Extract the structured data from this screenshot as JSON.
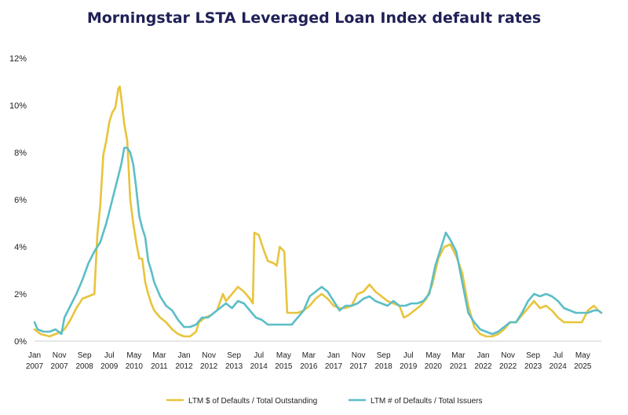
{
  "chart_data": {
    "type": "line",
    "title": "Morningstar LSTA Leveraged Loan Index default rates",
    "xlabel": "",
    "ylabel": "",
    "ylim": [
      0,
      12
    ],
    "y_ticks": [
      "0%",
      "2%",
      "4%",
      "6%",
      "8%",
      "10%",
      "12%"
    ],
    "y_tick_values": [
      0,
      2,
      4,
      6,
      8,
      10,
      12
    ],
    "x_range": [
      2007.0,
      2025.95
    ],
    "x_ticks": [
      {
        "month": "Jan",
        "year": "2007",
        "x": 2007.0
      },
      {
        "month": "Nov",
        "year": "2007",
        "x": 2007.83
      },
      {
        "month": "Sep",
        "year": "2008",
        "x": 2008.67
      },
      {
        "month": "Jul",
        "year": "2009",
        "x": 2009.5
      },
      {
        "month": "May",
        "year": "2010",
        "x": 2010.33
      },
      {
        "month": "Mar",
        "year": "2011",
        "x": 2011.17
      },
      {
        "month": "Jan",
        "year": "2012",
        "x": 2012.0
      },
      {
        "month": "Nov",
        "year": "2012",
        "x": 2012.83
      },
      {
        "month": "Sep",
        "year": "2013",
        "x": 2013.67
      },
      {
        "month": "Jul",
        "year": "2014",
        "x": 2014.5
      },
      {
        "month": "May",
        "year": "2015",
        "x": 2015.33
      },
      {
        "month": "Mar",
        "year": "2016",
        "x": 2016.17
      },
      {
        "month": "Jan",
        "year": "2017",
        "x": 2017.0
      },
      {
        "month": "Nov",
        "year": "2017",
        "x": 2017.83
      },
      {
        "month": "Sep",
        "year": "2018",
        "x": 2018.67
      },
      {
        "month": "Jul",
        "year": "2019",
        "x": 2019.5
      },
      {
        "month": "May",
        "year": "2020",
        "x": 2020.33
      },
      {
        "month": "Mar",
        "year": "2021",
        "x": 2021.17
      },
      {
        "month": "Jan",
        "year": "2022",
        "x": 2022.0
      },
      {
        "month": "Nov",
        "year": "2022",
        "x": 2022.83
      },
      {
        "month": "Sep",
        "year": "2023",
        "x": 2023.67
      },
      {
        "month": "Jul",
        "year": "2024",
        "x": 2024.5
      },
      {
        "month": "May",
        "year": "2025",
        "x": 2025.33
      }
    ],
    "legend_position": "bottom",
    "series": [
      {
        "name": "LTM $ of Defaults / Total Outstanding",
        "color": "#e8c43c",
        "points": [
          [
            2007.0,
            0.5
          ],
          [
            2007.2,
            0.3
          ],
          [
            2007.5,
            0.2
          ],
          [
            2007.7,
            0.3
          ],
          [
            2007.9,
            0.4
          ],
          [
            2008.0,
            0.5
          ],
          [
            2008.2,
            0.9
          ],
          [
            2008.4,
            1.4
          ],
          [
            2008.6,
            1.8
          ],
          [
            2008.8,
            1.9
          ],
          [
            2009.0,
            2.0
          ],
          [
            2009.1,
            4.5
          ],
          [
            2009.2,
            5.8
          ],
          [
            2009.3,
            7.9
          ],
          [
            2009.4,
            8.5
          ],
          [
            2009.5,
            9.3
          ],
          [
            2009.6,
            9.7
          ],
          [
            2009.7,
            9.9
          ],
          [
            2009.8,
            10.7
          ],
          [
            2009.85,
            10.8
          ],
          [
            2009.9,
            10.3
          ],
          [
            2010.0,
            9.2
          ],
          [
            2010.1,
            8.5
          ],
          [
            2010.2,
            6.0
          ],
          [
            2010.3,
            5.0
          ],
          [
            2010.4,
            4.2
          ],
          [
            2010.5,
            3.5
          ],
          [
            2010.6,
            3.5
          ],
          [
            2010.7,
            2.5
          ],
          [
            2010.8,
            2.0
          ],
          [
            2010.9,
            1.6
          ],
          [
            2011.0,
            1.3
          ],
          [
            2011.2,
            1.0
          ],
          [
            2011.4,
            0.8
          ],
          [
            2011.6,
            0.5
          ],
          [
            2011.8,
            0.3
          ],
          [
            2012.0,
            0.2
          ],
          [
            2012.2,
            0.2
          ],
          [
            2012.4,
            0.4
          ],
          [
            2012.5,
            0.8
          ],
          [
            2012.7,
            1.0
          ],
          [
            2012.9,
            1.1
          ],
          [
            2013.1,
            1.3
          ],
          [
            2013.3,
            2.0
          ],
          [
            2013.4,
            1.7
          ],
          [
            2013.6,
            2.0
          ],
          [
            2013.8,
            2.3
          ],
          [
            2014.0,
            2.1
          ],
          [
            2014.2,
            1.8
          ],
          [
            2014.3,
            1.6
          ],
          [
            2014.35,
            4.6
          ],
          [
            2014.5,
            4.5
          ],
          [
            2014.65,
            3.9
          ],
          [
            2014.8,
            3.4
          ],
          [
            2015.0,
            3.3
          ],
          [
            2015.1,
            3.2
          ],
          [
            2015.2,
            4.0
          ],
          [
            2015.35,
            3.8
          ],
          [
            2015.45,
            1.2
          ],
          [
            2015.6,
            1.2
          ],
          [
            2015.8,
            1.2
          ],
          [
            2016.0,
            1.3
          ],
          [
            2016.2,
            1.5
          ],
          [
            2016.4,
            1.8
          ],
          [
            2016.6,
            2.0
          ],
          [
            2016.8,
            1.8
          ],
          [
            2017.0,
            1.5
          ],
          [
            2017.2,
            1.4
          ],
          [
            2017.4,
            1.4
          ],
          [
            2017.6,
            1.5
          ],
          [
            2017.8,
            2.0
          ],
          [
            2018.0,
            2.1
          ],
          [
            2018.2,
            2.4
          ],
          [
            2018.4,
            2.1
          ],
          [
            2018.6,
            1.9
          ],
          [
            2018.8,
            1.7
          ],
          [
            2019.0,
            1.6
          ],
          [
            2019.2,
            1.5
          ],
          [
            2019.35,
            1.0
          ],
          [
            2019.5,
            1.1
          ],
          [
            2019.7,
            1.3
          ],
          [
            2019.9,
            1.5
          ],
          [
            2020.1,
            1.8
          ],
          [
            2020.3,
            2.4
          ],
          [
            2020.5,
            3.5
          ],
          [
            2020.7,
            4.0
          ],
          [
            2020.9,
            4.1
          ],
          [
            2021.1,
            3.6
          ],
          [
            2021.3,
            2.9
          ],
          [
            2021.5,
            1.5
          ],
          [
            2021.7,
            0.6
          ],
          [
            2021.9,
            0.3
          ],
          [
            2022.1,
            0.2
          ],
          [
            2022.3,
            0.2
          ],
          [
            2022.5,
            0.3
          ],
          [
            2022.7,
            0.5
          ],
          [
            2022.9,
            0.8
          ],
          [
            2023.1,
            0.8
          ],
          [
            2023.3,
            1.1
          ],
          [
            2023.5,
            1.4
          ],
          [
            2023.7,
            1.7
          ],
          [
            2023.9,
            1.4
          ],
          [
            2024.1,
            1.5
          ],
          [
            2024.3,
            1.3
          ],
          [
            2024.5,
            1.0
          ],
          [
            2024.7,
            0.8
          ],
          [
            2024.9,
            0.8
          ],
          [
            2025.1,
            0.8
          ],
          [
            2025.3,
            0.8
          ],
          [
            2025.5,
            1.3
          ],
          [
            2025.7,
            1.5
          ],
          [
            2025.85,
            1.3
          ],
          [
            2025.95,
            1.2
          ]
        ]
      },
      {
        "name": "LTM # of Defaults / Total Issuers",
        "color": "#5bbec8",
        "points": [
          [
            2007.0,
            0.8
          ],
          [
            2007.1,
            0.5
          ],
          [
            2007.3,
            0.4
          ],
          [
            2007.5,
            0.4
          ],
          [
            2007.7,
            0.5
          ],
          [
            2007.9,
            0.3
          ],
          [
            2008.0,
            1.0
          ],
          [
            2008.2,
            1.5
          ],
          [
            2008.4,
            2.0
          ],
          [
            2008.6,
            2.6
          ],
          [
            2008.8,
            3.3
          ],
          [
            2009.0,
            3.8
          ],
          [
            2009.2,
            4.2
          ],
          [
            2009.4,
            5.0
          ],
          [
            2009.6,
            6.0
          ],
          [
            2009.8,
            7.0
          ],
          [
            2009.9,
            7.5
          ],
          [
            2010.0,
            8.2
          ],
          [
            2010.1,
            8.2
          ],
          [
            2010.2,
            8.0
          ],
          [
            2010.3,
            7.5
          ],
          [
            2010.4,
            6.5
          ],
          [
            2010.5,
            5.3
          ],
          [
            2010.6,
            4.8
          ],
          [
            2010.7,
            4.4
          ],
          [
            2010.8,
            3.4
          ],
          [
            2010.9,
            3.0
          ],
          [
            2011.0,
            2.5
          ],
          [
            2011.2,
            1.9
          ],
          [
            2011.4,
            1.5
          ],
          [
            2011.6,
            1.3
          ],
          [
            2011.8,
            0.9
          ],
          [
            2012.0,
            0.6
          ],
          [
            2012.2,
            0.6
          ],
          [
            2012.4,
            0.7
          ],
          [
            2012.6,
            1.0
          ],
          [
            2012.8,
            1.0
          ],
          [
            2013.0,
            1.2
          ],
          [
            2013.2,
            1.4
          ],
          [
            2013.4,
            1.6
          ],
          [
            2013.6,
            1.4
          ],
          [
            2013.8,
            1.7
          ],
          [
            2014.0,
            1.6
          ],
          [
            2014.2,
            1.3
          ],
          [
            2014.4,
            1.0
          ],
          [
            2014.6,
            0.9
          ],
          [
            2014.8,
            0.7
          ],
          [
            2015.0,
            0.7
          ],
          [
            2015.2,
            0.7
          ],
          [
            2015.4,
            0.7
          ],
          [
            2015.6,
            0.7
          ],
          [
            2015.8,
            1.0
          ],
          [
            2016.0,
            1.3
          ],
          [
            2016.2,
            1.9
          ],
          [
            2016.4,
            2.1
          ],
          [
            2016.6,
            2.3
          ],
          [
            2016.8,
            2.1
          ],
          [
            2017.0,
            1.7
          ],
          [
            2017.2,
            1.3
          ],
          [
            2017.4,
            1.5
          ],
          [
            2017.6,
            1.5
          ],
          [
            2017.8,
            1.6
          ],
          [
            2018.0,
            1.8
          ],
          [
            2018.2,
            1.9
          ],
          [
            2018.4,
            1.7
          ],
          [
            2018.6,
            1.6
          ],
          [
            2018.8,
            1.5
          ],
          [
            2019.0,
            1.7
          ],
          [
            2019.2,
            1.5
          ],
          [
            2019.4,
            1.5
          ],
          [
            2019.6,
            1.6
          ],
          [
            2019.8,
            1.6
          ],
          [
            2020.0,
            1.7
          ],
          [
            2020.2,
            2.0
          ],
          [
            2020.4,
            3.2
          ],
          [
            2020.6,
            4.0
          ],
          [
            2020.75,
            4.6
          ],
          [
            2020.9,
            4.3
          ],
          [
            2021.1,
            3.8
          ],
          [
            2021.3,
            2.5
          ],
          [
            2021.5,
            1.2
          ],
          [
            2021.7,
            0.8
          ],
          [
            2021.9,
            0.5
          ],
          [
            2022.1,
            0.4
          ],
          [
            2022.3,
            0.3
          ],
          [
            2022.5,
            0.4
          ],
          [
            2022.7,
            0.6
          ],
          [
            2022.9,
            0.8
          ],
          [
            2023.1,
            0.8
          ],
          [
            2023.3,
            1.2
          ],
          [
            2023.5,
            1.7
          ],
          [
            2023.7,
            2.0
          ],
          [
            2023.9,
            1.9
          ],
          [
            2024.1,
            2.0
          ],
          [
            2024.3,
            1.9
          ],
          [
            2024.5,
            1.7
          ],
          [
            2024.7,
            1.4
          ],
          [
            2024.9,
            1.3
          ],
          [
            2025.1,
            1.2
          ],
          [
            2025.3,
            1.2
          ],
          [
            2025.5,
            1.2
          ],
          [
            2025.7,
            1.3
          ],
          [
            2025.85,
            1.3
          ],
          [
            2025.95,
            1.2
          ]
        ]
      }
    ]
  }
}
